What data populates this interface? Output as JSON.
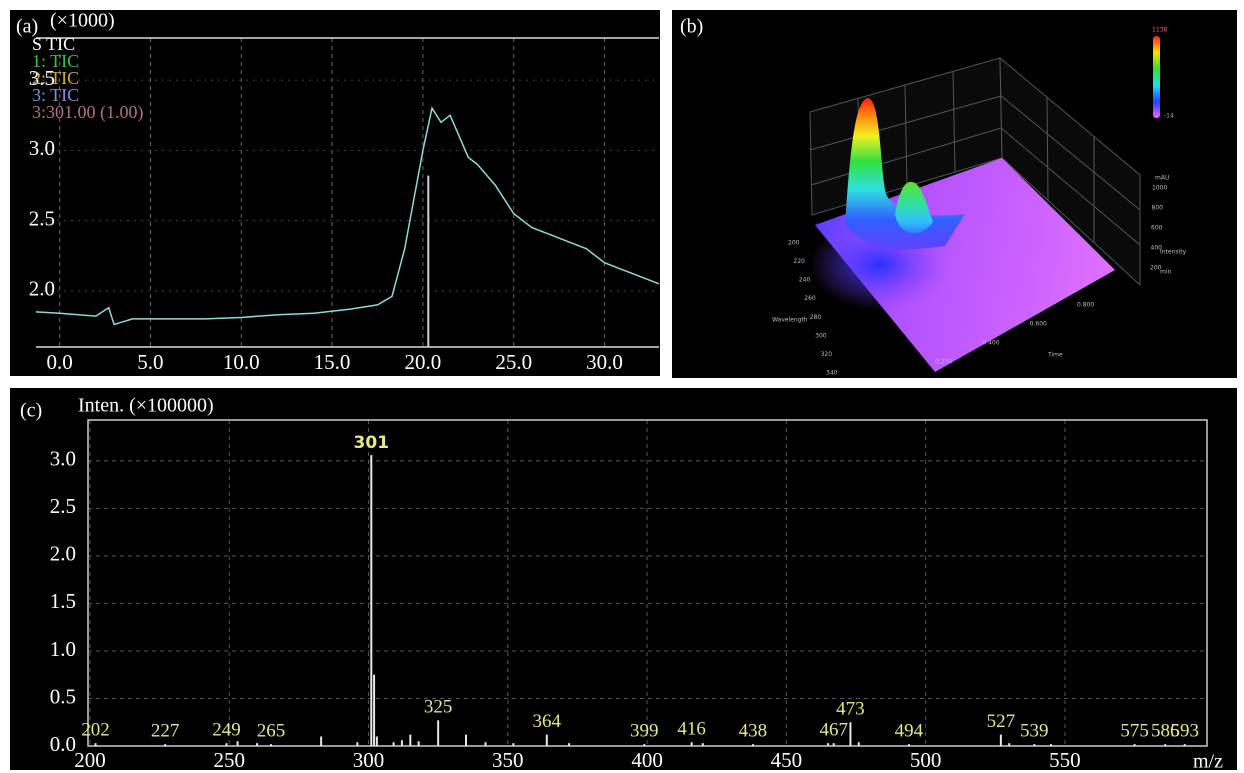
{
  "chart_data": [
    {
      "type": "line",
      "panel_label": "(a)",
      "y_unit_label": "(×1000)",
      "legend": [
        {
          "label": "S TIC",
          "color": "#ffffff"
        },
        {
          "label": "1: TIC",
          "color": "#3fbf3f"
        },
        {
          "label": "2: TIC",
          "color": "#c8b040"
        },
        {
          "label": "3: TIC",
          "color": "#8090d8"
        },
        {
          "label": "3:301.00 (1.00)",
          "color": "#b07090"
        }
      ],
      "color": "#8fd8dc",
      "x": [
        -1.3,
        0,
        2,
        2.7,
        3,
        4,
        6,
        8,
        10,
        12,
        14,
        16,
        17.5,
        18.3,
        19,
        19.5,
        20,
        20.5,
        21,
        21.5,
        22,
        22.5,
        23,
        24,
        25,
        26,
        27,
        28,
        29,
        30,
        31,
        32,
        33
      ],
      "values": [
        1.85,
        1.84,
        1.82,
        1.88,
        1.76,
        1.8,
        1.8,
        1.8,
        1.81,
        1.83,
        1.84,
        1.87,
        1.9,
        1.96,
        2.3,
        2.65,
        3.0,
        3.3,
        3.2,
        3.25,
        3.1,
        2.95,
        2.9,
        2.75,
        2.55,
        2.45,
        2.4,
        2.35,
        2.3,
        2.2,
        2.15,
        2.1,
        2.05
      ],
      "marker": {
        "x": 20.3,
        "y": 2.82,
        "color": "#d0d0d0"
      },
      "xlim": [
        -1.3,
        33
      ],
      "ylim": [
        1.6,
        3.8
      ],
      "xticks": [
        {
          "value": 0,
          "label": "0.0"
        },
        {
          "value": 5,
          "label": "5.0"
        },
        {
          "value": 10,
          "label": "10.0"
        },
        {
          "value": 15,
          "label": "15.0"
        },
        {
          "value": 20,
          "label": "20.0"
        },
        {
          "value": 25,
          "label": "25.0"
        },
        {
          "value": 30,
          "label": "30.0"
        }
      ],
      "yticks": [
        {
          "value": 2,
          "label": "2.0"
        },
        2.5,
        {
          "value": 3,
          "label": "3.0"
        },
        3.5
      ],
      "grid": true
    },
    {
      "type": "surface3d",
      "panel_label": "(b)",
      "colorbar_labels": [
        "1138",
        "-14"
      ],
      "x_label": "Wavelength",
      "xticks": [
        200,
        220,
        240,
        260,
        280,
        300,
        320,
        340
      ],
      "y_label": "Time",
      "yticks": [
        {
          "value": 0.2,
          "label": "0.200"
        },
        {
          "value": 0.4,
          "label": "0.400"
        },
        {
          "value": 0.6,
          "label": "0.600"
        },
        {
          "value": 0.8,
          "label": "0.800"
        }
      ],
      "z_label": "Intensity",
      "z_unit": "mAU",
      "y_unit": "min",
      "zticks": [
        200,
        400,
        600,
        800,
        1000
      ]
    },
    {
      "type": "bar",
      "panel_label": "(c)",
      "y_label": "Inten. (×100000)",
      "x_label": "m/z",
      "color": "#e8e8e8",
      "label_color": "#e6e68a",
      "x": [
        202,
        227,
        249,
        265,
        301,
        325,
        364,
        399,
        416,
        438,
        467,
        473,
        494,
        527,
        539,
        575,
        586,
        593
      ],
      "values": [
        0.03,
        0.02,
        0.03,
        0.02,
        3.06,
        0.27,
        0.12,
        0.02,
        0.04,
        0.02,
        0.03,
        0.25,
        0.02,
        0.12,
        0.02,
        0.02,
        0.02,
        0.02
      ],
      "minor_x": [
        253,
        260,
        283,
        296,
        302,
        303,
        309,
        312,
        315,
        318,
        335,
        342,
        352,
        372,
        420,
        465,
        476,
        530,
        545
      ],
      "minor_values": [
        0.05,
        0.03,
        0.1,
        0.04,
        0.75,
        0.1,
        0.04,
        0.06,
        0.12,
        0.05,
        0.12,
        0.04,
        0.03,
        0.03,
        0.03,
        0.03,
        0.04,
        0.03,
        0.02
      ],
      "xlim": [
        199.3,
        601
      ],
      "ylim": [
        0,
        3.43
      ],
      "xticks": [
        200,
        250,
        300,
        350,
        400,
        450,
        500,
        550
      ],
      "yticks": [
        {
          "value": 0,
          "label": "0.0"
        },
        0.5,
        {
          "value": 1,
          "label": "1.0"
        },
        1.5,
        {
          "value": 2,
          "label": "2.0"
        },
        2.5,
        {
          "value": 3,
          "label": "3.0"
        }
      ],
      "grid": true
    }
  ]
}
